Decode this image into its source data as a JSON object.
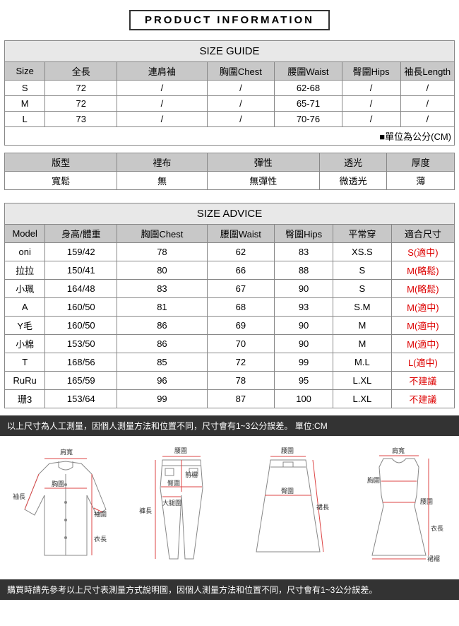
{
  "title": "PRODUCT INFORMATION",
  "sizeGuide": {
    "heading": "SIZE GUIDE",
    "headers": [
      "Size",
      "全長",
      "連肩袖",
      "胸圍Chest",
      "腰圍Waist",
      "臀圍Hips",
      "袖長Length"
    ],
    "rows": [
      [
        "S",
        "72",
        "/",
        "/",
        "62-68",
        "/",
        "/"
      ],
      [
        "M",
        "72",
        "/",
        "/",
        "65-71",
        "/",
        "/"
      ],
      [
        "L",
        "73",
        "/",
        "/",
        "70-76",
        "/",
        "/"
      ]
    ],
    "note": "■單位為公分(CM)"
  },
  "attributes": {
    "headers": [
      "版型",
      "裡布",
      "彈性",
      "透光",
      "厚度"
    ],
    "values": [
      "寬鬆",
      "無",
      "無彈性",
      "微透光",
      "薄"
    ]
  },
  "sizeAdvice": {
    "heading": "SIZE ADVICE",
    "headers": [
      "Model",
      "身高/體重",
      "胸圍Chest",
      "腰圍Waist",
      "臀圍Hips",
      "平常穿",
      "適合尺寸"
    ],
    "rows": [
      {
        "c": [
          "oni",
          "159/42",
          "78",
          "62",
          "83",
          "XS.S"
        ],
        "fit": "S(適中)"
      },
      {
        "c": [
          "拉拉",
          "150/41",
          "80",
          "66",
          "88",
          "S"
        ],
        "fit": "M(略鬆)"
      },
      {
        "c": [
          "小珮",
          "164/48",
          "83",
          "67",
          "90",
          "S"
        ],
        "fit": "M(略鬆)"
      },
      {
        "c": [
          "A",
          "160/50",
          "81",
          "68",
          "93",
          "S.M"
        ],
        "fit": "M(適中)"
      },
      {
        "c": [
          "Y毛",
          "160/50",
          "86",
          "69",
          "90",
          "M"
        ],
        "fit": "M(適中)"
      },
      {
        "c": [
          "小棉",
          "153/50",
          "86",
          "70",
          "90",
          "M"
        ],
        "fit": "M(適中)"
      },
      {
        "c": [
          "T",
          "168/56",
          "85",
          "72",
          "99",
          "M.L"
        ],
        "fit": "L(適中)"
      },
      {
        "c": [
          "RuRu",
          "165/59",
          "96",
          "78",
          "95",
          "L.XL"
        ],
        "fit": "不建議"
      },
      {
        "c": [
          "珊3",
          "153/64",
          "99",
          "87",
          "100",
          "L.XL"
        ],
        "fit": "不建議"
      }
    ]
  },
  "notice1": "以上尺寸為人工測量，因個人測量方法和位置不同，尺寸會有1~3公分誤差。 單位:CM",
  "notice2": "購買時請先參考以上尺寸表測量方式說明圖，因個人測量方法和位置不同，尺寸會有1~3公分誤差。",
  "diagLabels": {
    "shoulder": "肩寬",
    "chest": "胸圍",
    "waist": "腰圍",
    "sleeve": "袖長",
    "cuff": "袖圍",
    "length": "衣長",
    "pantsLen": "褲長",
    "front": "前檔",
    "hip": "臀圍",
    "thigh": "大腿圍",
    "skirtLen": "裙長",
    "hem": "裙襬"
  },
  "style": {
    "colWidthsGuide": [
      "9%",
      "16%",
      "20%",
      "15%",
      "15%",
      "13%",
      "12%"
    ],
    "colWidthsAttr": [
      "25%",
      "20%",
      "25%",
      "15%",
      "15%"
    ],
    "colWidthsAdvice": [
      "9%",
      "16%",
      "20%",
      "15%",
      "13%",
      "13%",
      "14%"
    ],
    "headerBg": "#c8c8c8",
    "sectionBg": "#e8e8e8",
    "border": "#888",
    "redText": "#d00",
    "darkBar": "#333",
    "dimLine": "#d44"
  }
}
